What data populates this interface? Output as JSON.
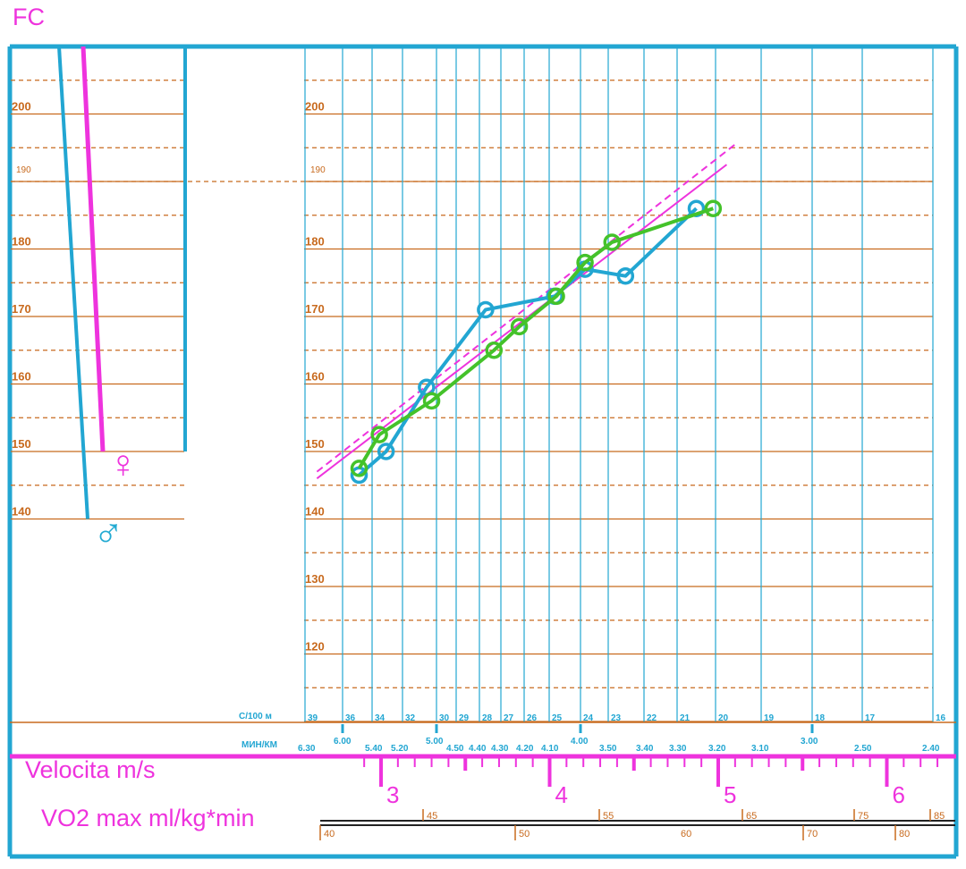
{
  "labels": {
    "fc": "FC",
    "velocity": "Velocita m/s",
    "vo2": "VO2 max ml/kg*min",
    "per100m": "С/100 м",
    "minkm": "МИН/КМ",
    "female_symbol": "♀",
    "male_symbol": "♂"
  },
  "colors": {
    "frame": "#22a6d2",
    "grid_brown": "#c86a1e",
    "magenta": "#ee33dd",
    "green": "#44c22a",
    "dark": "#222222"
  },
  "chart_data": {
    "type": "line",
    "ylim": [
      110,
      210
    ],
    "hr_major_ticks": [
      "120",
      "130",
      "140",
      "150",
      "160",
      "170",
      "180",
      "200"
    ],
    "hr_left_ticks": [
      "140",
      "150",
      "160",
      "170",
      "180",
      "200"
    ],
    "hr_small_ticks": [
      "190"
    ],
    "sec_per_100m": [
      "39",
      "36",
      "34",
      "32",
      "30",
      "29",
      "28",
      "27",
      "26",
      "25",
      "24",
      "23",
      "22",
      "21",
      "20",
      "19",
      "18",
      "17",
      "16"
    ],
    "min_per_km": [
      "6.30",
      "6.00",
      "5.40",
      "5.20",
      "5.00",
      "4.50",
      "4.40",
      "4.30",
      "4.20",
      "4.10",
      "4.00",
      "3.50",
      "3.40",
      "3.30",
      "3.20",
      "3.10",
      "3.00",
      "2.50",
      "2.40"
    ],
    "velocity_ticks": [
      "3",
      "4",
      "5",
      "6"
    ],
    "vo2_upper": [
      "45",
      "55",
      "65",
      "75",
      "85"
    ],
    "vo2_lower": [
      "40",
      "50",
      "60",
      "70",
      "80"
    ],
    "series": [
      {
        "color": "#22a6d2",
        "x": [
          2.87,
          3.03,
          3.27,
          3.62,
          4.03,
          4.21,
          4.45,
          4.87
        ],
        "y": [
          146.5,
          150,
          159.5,
          171,
          173,
          177,
          176,
          186
        ]
      },
      {
        "color": "#44c22a",
        "x": [
          2.87,
          2.99,
          3.3,
          3.67,
          3.82,
          4.04,
          4.21,
          4.37,
          4.97
        ],
        "y": [
          147.5,
          152.5,
          157.5,
          165,
          168.5,
          173,
          178,
          181,
          186
        ]
      }
    ],
    "trend_lines": [
      {
        "style": "solid",
        "x": [
          2.62,
          5.05
        ],
        "y": [
          146,
          192.5
        ]
      },
      {
        "style": "dashed",
        "x": [
          2.62,
          5.1
        ],
        "y": [
          147,
          195.5
        ]
      }
    ],
    "gender_lines": [
      {
        "name": "female",
        "color": "#ee33dd",
        "hr": [
          210,
          150
        ]
      },
      {
        "name": "male",
        "color": "#22a6d2",
        "hr": [
          210,
          140
        ]
      }
    ]
  }
}
